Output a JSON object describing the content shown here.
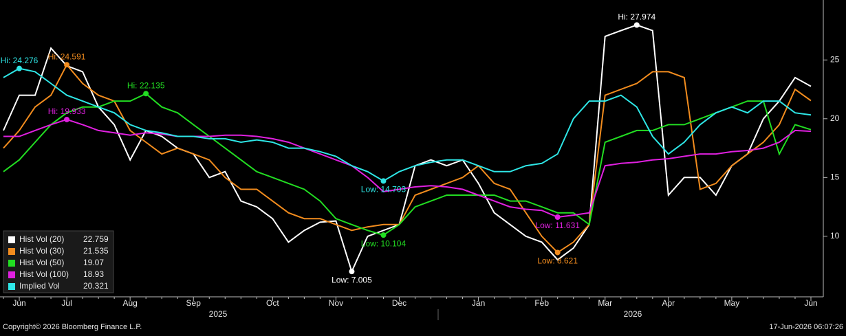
{
  "chart_data": {
    "type": "line",
    "categories": [
      null,
      "Jun",
      null,
      null,
      "Jul",
      null,
      null,
      null,
      "Aug",
      null,
      null,
      null,
      "Sep",
      null,
      null,
      null,
      null,
      "Oct",
      null,
      null,
      null,
      "Nov",
      null,
      null,
      null,
      "Dec",
      null,
      null,
      null,
      null,
      "Jan",
      null,
      null,
      null,
      "Feb",
      null,
      null,
      null,
      "Mar",
      null,
      null,
      null,
      "Apr",
      null,
      null,
      null,
      "May",
      null,
      null,
      null,
      null,
      "Jun"
    ],
    "x_group_labels": [
      "2025",
      "2026"
    ],
    "ylim": [
      4.85,
      30.1
    ],
    "yticks": [
      10,
      15,
      20,
      25
    ],
    "grid": false,
    "legend": "lower left",
    "series": [
      {
        "name": "Hist Vol (20)",
        "color": "#ffffff",
        "values": [
          19,
          22,
          22,
          26,
          24.5,
          24,
          21,
          19.5,
          16.5,
          19,
          18.5,
          17.5,
          17,
          15,
          15.5,
          13,
          12.5,
          11.5,
          9.5,
          10.5,
          11.2,
          11.3,
          7.005,
          10,
          10.5,
          11,
          16,
          16.5,
          16,
          16.5,
          14.5,
          12,
          11,
          10,
          9.5,
          8,
          9,
          11,
          27,
          27.5,
          27.974,
          27.5,
          13.5,
          15,
          15,
          13.5,
          16,
          17,
          20,
          21.5,
          23.5,
          22.759
        ],
        "value_labels": [
          null,
          null,
          null,
          null,
          null,
          null,
          null,
          null,
          null,
          null,
          null,
          null,
          null,
          null,
          null,
          null,
          null,
          null,
          null,
          null,
          null,
          null,
          "Low: 7.005",
          null,
          null,
          null,
          null,
          null,
          null,
          null,
          null,
          null,
          null,
          null,
          null,
          null,
          null,
          null,
          null,
          null,
          "Hi: 27.974",
          null,
          null,
          null,
          null,
          null,
          null,
          null,
          null,
          null,
          null,
          null
        ]
      },
      {
        "name": "Hist Vol (30)",
        "color": "#f28c1e",
        "values": [
          17.5,
          19,
          21,
          22,
          24.591,
          23,
          22,
          21.5,
          19,
          18,
          17,
          17.5,
          17,
          16.5,
          15,
          14,
          14,
          13,
          12,
          11.5,
          11.5,
          11,
          10.5,
          10.8,
          11,
          11,
          13.5,
          14,
          14.5,
          15,
          16,
          14.5,
          14,
          12,
          10,
          8.621,
          9.5,
          11,
          22,
          22.5,
          23,
          24,
          24,
          23.5,
          14,
          14.5,
          16,
          17,
          18,
          19.5,
          22.5,
          21.535
        ],
        "value_labels": [
          null,
          null,
          null,
          null,
          "Hi: 24.591",
          null,
          null,
          null,
          null,
          null,
          null,
          null,
          null,
          null,
          null,
          null,
          null,
          null,
          null,
          null,
          null,
          null,
          null,
          null,
          null,
          null,
          null,
          null,
          null,
          null,
          null,
          null,
          null,
          null,
          null,
          "Low: 8.621",
          null,
          null,
          null,
          null,
          null,
          null,
          null,
          null,
          null,
          null,
          null,
          null,
          null,
          null,
          null,
          null
        ]
      },
      {
        "name": "Hist Vol (50)",
        "color": "#22dd22",
        "values": [
          15.5,
          16.5,
          18,
          19.5,
          20.5,
          21,
          21,
          21.5,
          21.5,
          22.135,
          21,
          20.5,
          19.5,
          18.5,
          17.5,
          16.5,
          15.5,
          15,
          14.5,
          14,
          13,
          11.5,
          11,
          10.5,
          10.104,
          11,
          12.5,
          13,
          13.5,
          13.5,
          13.5,
          13.5,
          13,
          13,
          12.5,
          12,
          12,
          11,
          18,
          18.5,
          19,
          19,
          19.5,
          19.5,
          20,
          20.5,
          21,
          21.5,
          21.5,
          17,
          19.5,
          19.07
        ],
        "value_labels": [
          null,
          null,
          null,
          null,
          null,
          null,
          null,
          null,
          null,
          "Hi: 22.135",
          null,
          null,
          null,
          null,
          null,
          null,
          null,
          null,
          null,
          null,
          null,
          null,
          null,
          null,
          "Low: 10.104",
          null,
          null,
          null,
          null,
          null,
          null,
          null,
          null,
          null,
          null,
          null,
          null,
          null,
          null,
          null,
          null,
          null,
          null,
          null,
          null,
          null,
          null,
          null,
          null,
          null,
          null,
          null
        ]
      },
      {
        "name": "Hist Vol (100)",
        "color": "#e020e0",
        "values": [
          18.5,
          18.5,
          19,
          19.5,
          19.933,
          19.5,
          19,
          18.8,
          18.6,
          18.8,
          18.7,
          18.5,
          18.5,
          18.5,
          18.6,
          18.6,
          18.5,
          18.3,
          18,
          17.5,
          17,
          16.5,
          16,
          15,
          13.8,
          14,
          14.2,
          14.3,
          14.2,
          14,
          13.5,
          13,
          12.5,
          12.3,
          12.2,
          11.631,
          11.8,
          12,
          16,
          16.2,
          16.3,
          16.5,
          16.6,
          16.8,
          17,
          17,
          17.2,
          17.3,
          17.5,
          18,
          19,
          18.93
        ],
        "value_labels": [
          null,
          null,
          null,
          null,
          "Hi: 19.933",
          null,
          null,
          null,
          null,
          null,
          null,
          null,
          null,
          null,
          null,
          null,
          null,
          null,
          null,
          null,
          null,
          null,
          null,
          null,
          null,
          null,
          null,
          null,
          null,
          null,
          null,
          null,
          null,
          null,
          null,
          "Low: 11.631",
          null,
          null,
          null,
          null,
          null,
          null,
          null,
          null,
          null,
          null,
          null,
          null,
          null,
          null,
          null,
          null
        ]
      },
      {
        "name": "Implied Vol",
        "color": "#2ee6e6",
        "values": [
          23.5,
          24.276,
          24,
          23,
          22,
          21.5,
          21,
          20.5,
          19.5,
          19,
          18.8,
          18.5,
          18.5,
          18.3,
          18.3,
          18,
          18.2,
          18,
          17.5,
          17.5,
          17.2,
          16.8,
          16,
          15.5,
          14.703,
          15.5,
          16,
          16.3,
          16.5,
          16.5,
          16,
          15.5,
          15.5,
          16,
          16.2,
          17,
          20,
          21.5,
          21.5,
          22,
          21,
          18.5,
          17,
          18,
          19.5,
          20.5,
          21,
          20.5,
          21.5,
          21.5,
          20.5,
          20.321
        ],
        "value_labels": [
          null,
          "Hi: 24.276",
          null,
          null,
          null,
          null,
          null,
          null,
          null,
          null,
          null,
          null,
          null,
          null,
          null,
          null,
          null,
          null,
          null,
          null,
          null,
          null,
          null,
          null,
          "Low: 14.703",
          null,
          null,
          null,
          null,
          null,
          null,
          null,
          null,
          null,
          null,
          null,
          null,
          null,
          null,
          null,
          null,
          null,
          null,
          null,
          null,
          null,
          null,
          null,
          null,
          null,
          null,
          null
        ]
      }
    ]
  },
  "footer": {
    "copyright": "Copyright© 2026 Bloomberg Finance L.P.",
    "timestamp": "17-Jun-2026 06:07:26"
  }
}
